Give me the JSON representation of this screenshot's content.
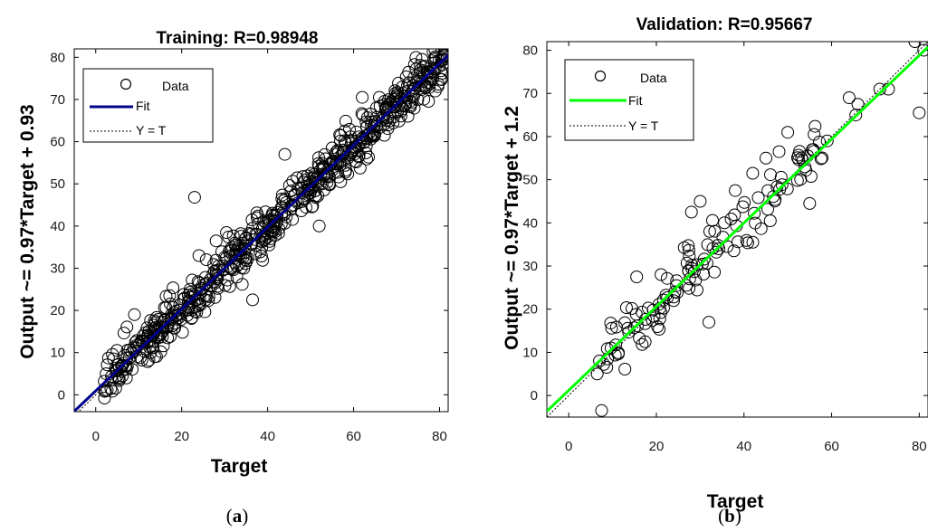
{
  "chart_data": [
    {
      "type": "scatter",
      "title": "Training: R=0.98948",
      "xlabel": "Target",
      "ylabel": "Output ~= 0.97*Target + 0.93",
      "xlim": [
        -5,
        82
      ],
      "ylim": [
        -4,
        82
      ],
      "xticks": [
        0,
        20,
        40,
        60,
        80
      ],
      "yticks": [
        0,
        10,
        20,
        30,
        40,
        50,
        60,
        70,
        80
      ],
      "fit": {
        "slope": 0.97,
        "intercept": 0.93,
        "color": "#00008b"
      },
      "identity_line": true,
      "legend": {
        "placement": "top-left",
        "entries": [
          "Data",
          "Fit",
          "Y = T"
        ]
      },
      "grid": false,
      "caption_prefix": "(",
      "caption_letter": "a",
      "caption_suffix": ")",
      "n_points": 640,
      "noise_std": 2.6,
      "x_range": [
        2,
        81
      ],
      "seed": 7,
      "outliers": [
        {
          "x": 23,
          "y": 46.8
        },
        {
          "x": 52,
          "y": 40
        },
        {
          "x": 9,
          "y": 19
        },
        {
          "x": 79,
          "y": 72
        },
        {
          "x": 2,
          "y": 3.2
        },
        {
          "x": 5,
          "y": 4.5
        },
        {
          "x": 24,
          "y": 33
        },
        {
          "x": 44,
          "y": 57
        },
        {
          "x": 62,
          "y": 70.5
        },
        {
          "x": 66,
          "y": 70.5
        },
        {
          "x": 81,
          "y": 80.5
        },
        {
          "x": 36.5,
          "y": 22.5
        },
        {
          "x": 28,
          "y": 36.5
        },
        {
          "x": 57,
          "y": 50.5
        }
      ]
    },
    {
      "type": "scatter",
      "title": "Validation: R=0.95667",
      "xlabel": "Target",
      "ylabel": "Output ~= 0.97*Target + 1.2",
      "xlim": [
        -5,
        82
      ],
      "ylim": [
        -5,
        82
      ],
      "xticks": [
        0,
        20,
        40,
        60,
        80
      ],
      "yticks": [
        0,
        10,
        20,
        30,
        40,
        50,
        60,
        70,
        80
      ],
      "fit": {
        "slope": 0.97,
        "intercept": 1.2,
        "color": "#00ff00"
      },
      "identity_line": true,
      "legend": {
        "placement": "top-left",
        "entries": [
          "Data",
          "Fit",
          "Y = T"
        ]
      },
      "grid": false,
      "caption_prefix": "(",
      "caption_letter": "b",
      "caption_suffix": ")",
      "n_points": 125,
      "noise_std": 3.8,
      "x_range": [
        8,
        58
      ],
      "seed": 19,
      "outliers": [
        {
          "x": 7.5,
          "y": -3.5
        },
        {
          "x": 6.5,
          "y": 5
        },
        {
          "x": 7,
          "y": 8
        },
        {
          "x": 32,
          "y": 17
        },
        {
          "x": 15.5,
          "y": 27.5
        },
        {
          "x": 79,
          "y": 82
        },
        {
          "x": 80,
          "y": 65.5
        },
        {
          "x": 81,
          "y": 80
        },
        {
          "x": 71,
          "y": 71
        },
        {
          "x": 73,
          "y": 71
        },
        {
          "x": 64,
          "y": 69
        },
        {
          "x": 65.5,
          "y": 65
        },
        {
          "x": 66,
          "y": 67.5
        },
        {
          "x": 56,
          "y": 60.5
        },
        {
          "x": 59,
          "y": 59
        },
        {
          "x": 55,
          "y": 44.5
        },
        {
          "x": 50,
          "y": 61
        },
        {
          "x": 28,
          "y": 42.5
        },
        {
          "x": 30,
          "y": 45
        },
        {
          "x": 42,
          "y": 51.5
        },
        {
          "x": 45,
          "y": 55
        },
        {
          "x": 48,
          "y": 56.5
        },
        {
          "x": 38,
          "y": 47.5
        },
        {
          "x": 46,
          "y": 40.5
        }
      ]
    }
  ]
}
